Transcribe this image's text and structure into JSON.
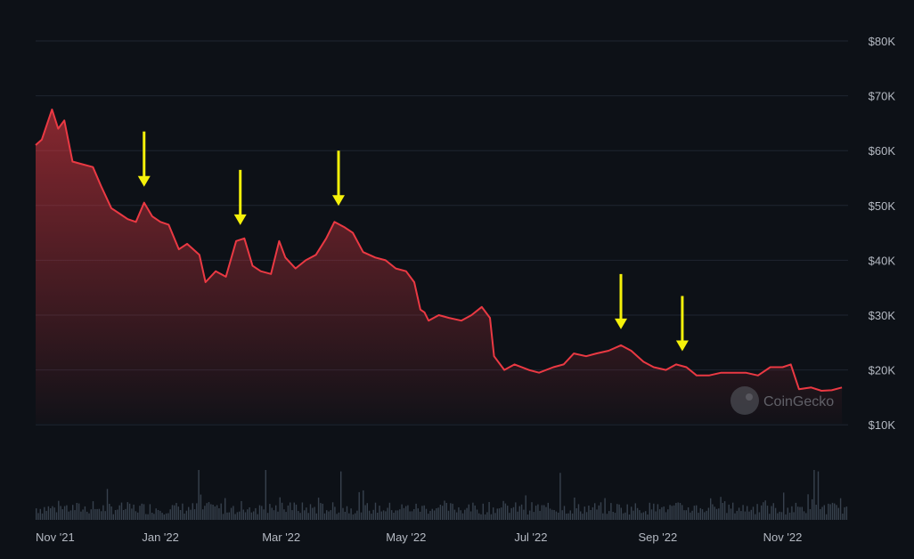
{
  "chart_data": {
    "type": "area",
    "price": {
      "x": [
        "2021-11-01",
        "2021-11-04",
        "2021-11-09",
        "2021-11-12",
        "2021-11-15",
        "2021-11-19",
        "2021-11-24",
        "2021-11-29",
        "2021-12-03",
        "2021-12-08",
        "2021-12-12",
        "2021-12-16",
        "2021-12-20",
        "2021-12-24",
        "2021-12-28",
        "2022-01-01",
        "2022-01-05",
        "2022-01-10",
        "2022-01-14",
        "2022-01-20",
        "2022-01-23",
        "2022-01-28",
        "2022-02-02",
        "2022-02-07",
        "2022-02-11",
        "2022-02-15",
        "2022-02-19",
        "2022-02-24",
        "2022-02-28",
        "2022-03-03",
        "2022-03-08",
        "2022-03-13",
        "2022-03-18",
        "2022-03-23",
        "2022-03-27",
        "2022-04-01",
        "2022-04-05",
        "2022-04-10",
        "2022-04-16",
        "2022-04-21",
        "2022-04-26",
        "2022-05-01",
        "2022-05-05",
        "2022-05-08",
        "2022-05-10",
        "2022-05-12",
        "2022-05-17",
        "2022-05-22",
        "2022-05-28",
        "2022-06-02",
        "2022-06-07",
        "2022-06-11",
        "2022-06-13",
        "2022-06-18",
        "2022-06-23",
        "2022-06-30",
        "2022-07-05",
        "2022-07-12",
        "2022-07-17",
        "2022-07-22",
        "2022-07-28",
        "2022-08-02",
        "2022-08-08",
        "2022-08-14",
        "2022-08-19",
        "2022-08-25",
        "2022-08-30",
        "2022-09-05",
        "2022-09-10",
        "2022-09-15",
        "2022-09-20",
        "2022-09-26",
        "2022-10-02",
        "2022-10-08",
        "2022-10-14",
        "2022-10-20",
        "2022-10-26",
        "2022-11-01",
        "2022-11-05",
        "2022-11-09",
        "2022-11-15",
        "2022-11-20",
        "2022-11-25",
        "2022-11-30"
      ],
      "y": [
        61000,
        62000,
        67500,
        64000,
        65500,
        58000,
        57500,
        57000,
        53500,
        49500,
        48500,
        47500,
        47000,
        50500,
        48000,
        47000,
        46500,
        42000,
        43000,
        41000,
        36000,
        38000,
        37000,
        43500,
        44000,
        39000,
        38000,
        37500,
        43500,
        40500,
        38500,
        40000,
        41000,
        44000,
        47000,
        46000,
        45000,
        41500,
        40500,
        40000,
        38500,
        38000,
        36000,
        31000,
        30500,
        29000,
        30000,
        29500,
        29000,
        30000,
        31500,
        29500,
        22500,
        20000,
        21000,
        20000,
        19500,
        20500,
        21000,
        23000,
        22500,
        23000,
        23500,
        24500,
        23500,
        21500,
        20500,
        20000,
        21000,
        20500,
        19000,
        19000,
        19500,
        19500,
        19500,
        19000,
        20500,
        20500,
        21000,
        16500,
        16800,
        16200,
        16300,
        16800
      ]
    },
    "arrows_at": [
      "2021-12-24",
      "2022-02-09",
      "2022-03-29",
      "2022-08-14",
      "2022-09-13"
    ],
    "volume_bars": 400,
    "xaxis": {
      "ticks": [
        "Nov '21",
        "Jan '22",
        "Mar '22",
        "May '22",
        "Jul '22",
        "Sep '22",
        "Nov '22"
      ]
    },
    "yaxis": {
      "ticks": [
        "$10K",
        "$20K",
        "$30K",
        "$40K",
        "$50K",
        "$60K",
        "$70K",
        "$80K"
      ],
      "range": [
        10000,
        80000
      ],
      "position": "right"
    },
    "grid": true,
    "colors": {
      "line": "#ea3943",
      "arrow": "#f5f10a",
      "grid": "#1e2530",
      "tick_text": "#b4b9c2",
      "volume": "#4a5565",
      "background": "#0d1117"
    },
    "watermark": "CoinGecko"
  }
}
